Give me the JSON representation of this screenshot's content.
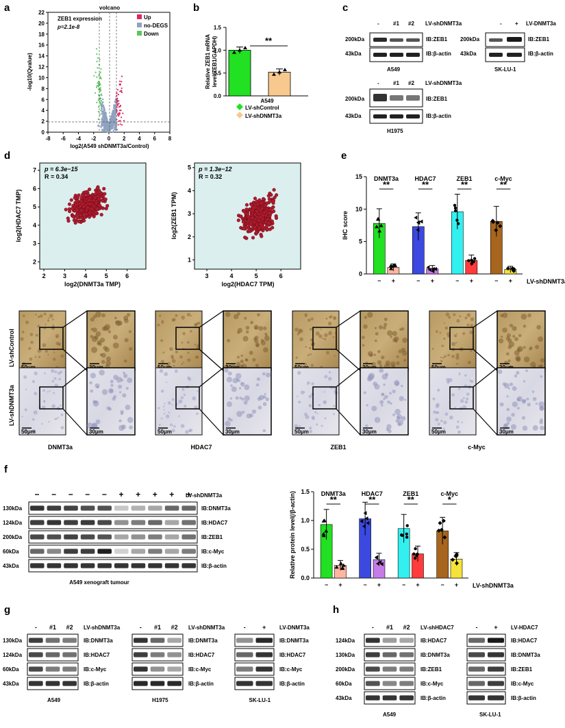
{
  "panels": {
    "a": "a",
    "b": "b",
    "c": "c",
    "d": "d",
    "e": "e",
    "f": "f",
    "g": "g",
    "h": "h"
  },
  "a": {
    "title": "volcano",
    "annot1": "ZEB1 expression",
    "annot2": "p=2.1e-8",
    "xlabel": "log2(A549 shDNMT3a/Control)",
    "ylabel": "-log10(Qvalue)",
    "xticks": [
      "-8",
      "-6",
      "-4",
      "-2",
      "0",
      "2",
      "4",
      "6",
      "8"
    ],
    "yticks": [
      "0",
      "2",
      "4",
      "6",
      "8",
      "10",
      "12",
      "14",
      "16",
      "18",
      "20",
      "22"
    ],
    "legend": [
      {
        "name": "Up",
        "color": "#e0245e"
      },
      {
        "name": "no-DEGS",
        "color": "#8fa3c0"
      },
      {
        "name": "Down",
        "color": "#5cc65c"
      }
    ]
  },
  "b": {
    "ylabel1": "Relative ZEB1 mRNA",
    "ylabel2": "level(ZEB1/GAPDH)",
    "yticks": [
      "0.0",
      "0.5",
      "1.0",
      "1.5"
    ],
    "xlabel": "A549",
    "sig": "**",
    "legend": [
      {
        "name": "LV-shControl",
        "color": "#22e022"
      },
      {
        "name": "LV-shDNMT3a",
        "color": "#f7c98f"
      }
    ],
    "chart_data": {
      "type": "bar",
      "categories": [
        "LV-shControl",
        "LV-shDNMT3a"
      ],
      "values": [
        1.0,
        0.52
      ],
      "ylim": [
        0,
        1.5
      ]
    }
  },
  "c": {
    "top_left_lane": [
      "-",
      "#1",
      "#2"
    ],
    "lv_sh": "LV-shDNMT3a",
    "lv_over": "LV-DNMT3a",
    "plus_minus": [
      "-",
      "+"
    ],
    "kda200": "200kDa",
    "kda43": "43kDa",
    "ib_zeb1": "IB:ZEB1",
    "ib_actin": "IB:β-actin",
    "cell1": "A549",
    "cell2": "SK-LU-1",
    "cell3": "H1975"
  },
  "d": {
    "left": {
      "stat_p": "p = 6.3e−15",
      "stat_r": "R = 0.34",
      "xlabel": "log2(DNMT3a TMP)",
      "ylabel": "log2(HDAC7 TMP)",
      "xticks": [
        "2",
        "3",
        "4",
        "5",
        "6"
      ],
      "yticks": [
        "2",
        "3",
        "4",
        "5",
        "6",
        "7"
      ]
    },
    "right": {
      "stat_p": "p = 1.3e−12",
      "stat_r": "R = 0.32",
      "xlabel": "log2(HDAC7 TPM)",
      "ylabel": "log2(ZEB1 TPM)",
      "xticks": [
        "3",
        "4",
        "5",
        "6"
      ],
      "yticks": [
        "1",
        "2",
        "3",
        "4",
        "5"
      ]
    }
  },
  "e": {
    "ylabel": "IHC score",
    "yticks": [
      "0",
      "5",
      "10",
      "15"
    ],
    "groups": [
      "DNMT3a",
      "HDAC7",
      "ZEB1",
      "c-Myc"
    ],
    "sig": [
      "**",
      "**",
      "**",
      "**"
    ],
    "xmarks": [
      "−",
      "+",
      "−",
      "+",
      "−",
      "+",
      "−",
      "+"
    ],
    "lv": "LV-shDNMT3a",
    "chart_data": {
      "type": "bar",
      "categories": [
        "DNMT3a",
        "HDAC7",
        "ZEB1",
        "c-Myc"
      ],
      "series": [
        {
          "values": [
            7.8,
            7.3,
            9.6,
            8.1
          ]
        },
        {
          "values": [
            1.0,
            0.8,
            2.1,
            0.7
          ]
        }
      ],
      "ylim": [
        0,
        15
      ]
    }
  },
  "ihc": {
    "row1": "LV-shControl",
    "row2": "LV-shDNMT3a",
    "scale_big": "50μm",
    "scale_small": "30μm",
    "stains": [
      "DNMT3a",
      "HDAC7",
      "ZEB1",
      "c-Myc"
    ]
  },
  "f": {
    "signs": [
      "−",
      "−",
      "−",
      "−",
      "−",
      "+",
      "+",
      "+",
      "+",
      "+"
    ],
    "lv": "LV-shDNMT3a",
    "kdas": [
      "130kDa",
      "124kDa",
      "200kDa",
      "60kDa",
      "43kDa"
    ],
    "ibs": [
      "IB:DNMT3a",
      "IB:HDAC7",
      "IB:ZEB1",
      "IB:c-Myc",
      "IB:β-actin"
    ],
    "caption": "A549 xenograft tumour",
    "chart": {
      "ylabel": "Relative protein level(/β-actin)",
      "yticks": [
        "0.0",
        "0.5",
        "1.0",
        "1.5"
      ],
      "groups": [
        "DNMT3a",
        "HDAC7",
        "ZEB1",
        "c-Myc"
      ],
      "sig": [
        "**",
        "**",
        "**",
        "*"
      ],
      "xmarks": [
        "−",
        "+",
        "−",
        "+",
        "−",
        "+",
        "−",
        "+"
      ],
      "lv": "LV-shDNMT3a"
    },
    "chart_data": {
      "type": "bar",
      "categories": [
        "DNMT3a",
        "HDAC7",
        "ZEB1",
        "c-Myc"
      ],
      "series": [
        {
          "values": [
            0.93,
            1.03,
            0.86,
            0.82
          ]
        },
        {
          "values": [
            0.22,
            0.32,
            0.42,
            0.33
          ]
        }
      ],
      "ylim": [
        0,
        1.5
      ]
    }
  },
  "g": {
    "lanes1": [
      "-",
      "#1",
      "#2"
    ],
    "lv_sh": "LV-shDNMT3a",
    "lv_over": "LV-DNMT3a",
    "pm": [
      "-",
      "+"
    ],
    "kdas": [
      "130kDa",
      "124kDa",
      "60kDa",
      "43kDa"
    ],
    "ibs": [
      "IB:DNMT3a",
      "IB:HDAC7",
      "IB:c-Myc",
      "IB:β-actin"
    ],
    "cells": [
      "A549",
      "H1975",
      "SK-LU-1"
    ]
  },
  "h": {
    "lanes1": [
      "-",
      "#1",
      "#2"
    ],
    "lv_sh": "LV-shHDAC7",
    "lv_over": "LV-HDAC7",
    "pm": [
      "-",
      "+"
    ],
    "kdas": [
      "124kDa",
      "130kDa",
      "200kDa",
      "60kDa",
      "43kDa"
    ],
    "ibs": [
      "IB:HDAC7",
      "IB:DNMT3a",
      "IB:ZEB1",
      "IB:c-Myc",
      "IB:β-actin"
    ],
    "cells": [
      "A549",
      "SK-LU-1"
    ]
  }
}
